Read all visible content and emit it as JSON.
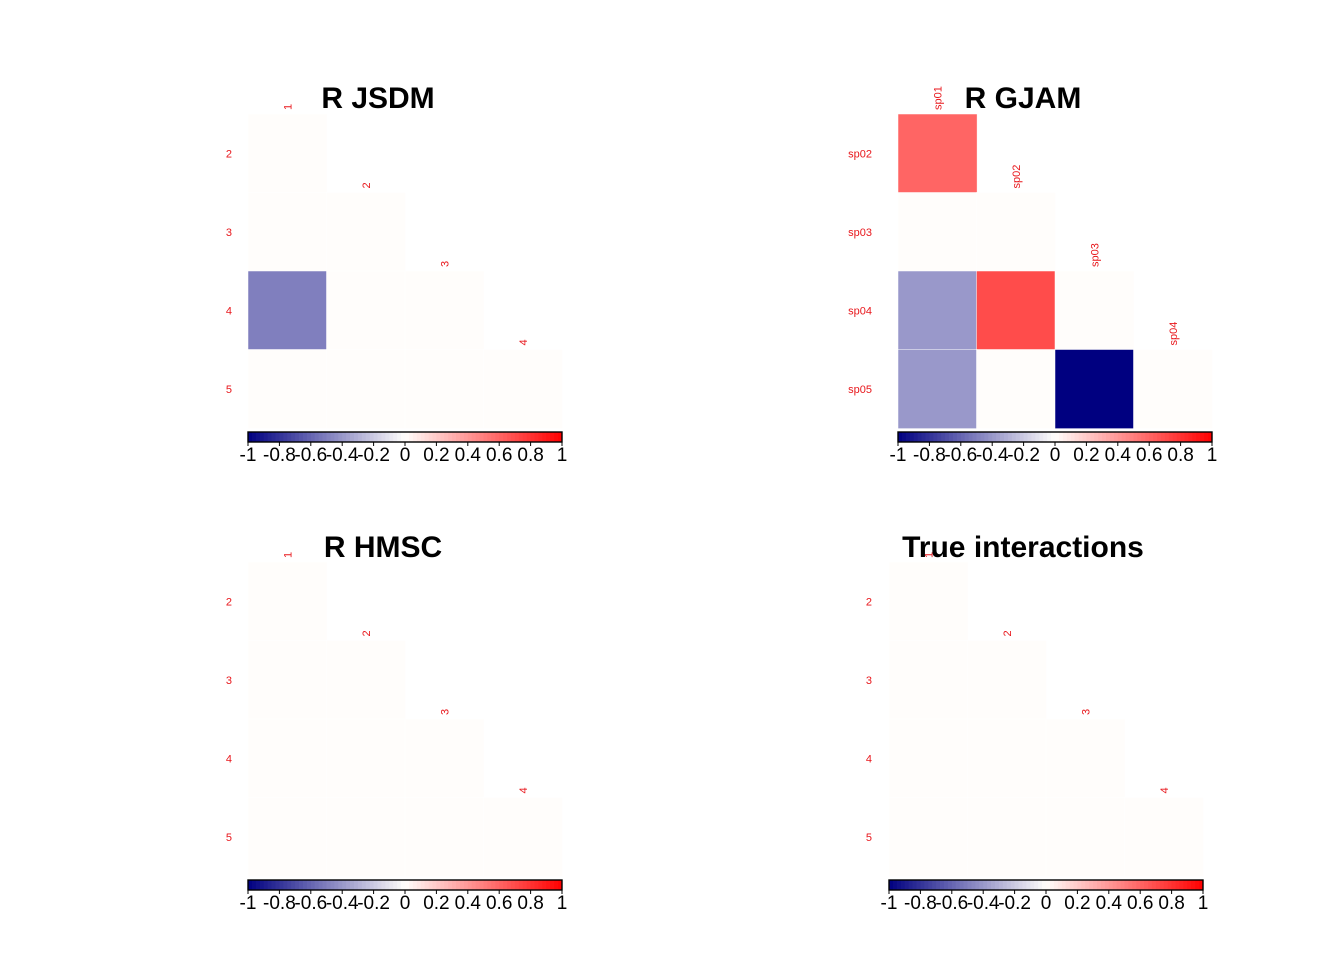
{
  "chart_data": [
    {
      "type": "heatmap",
      "title": "R  JSDM",
      "row_labels": [
        "2",
        "3",
        "4",
        "5"
      ],
      "col_labels": [
        "1",
        "2",
        "3",
        "4"
      ],
      "values": [
        [
          0,
          null,
          null,
          null
        ],
        [
          0,
          0,
          null,
          null
        ],
        [
          -0.5,
          0,
          0,
          null
        ],
        [
          0,
          0,
          0,
          0
        ]
      ],
      "colorbar": {
        "ticks": [
          "-1",
          "-0.8",
          "-0.6",
          "-0.4",
          "-0.2",
          "0",
          "0.2",
          "0.4",
          "0.6",
          "0.8",
          "1"
        ],
        "range": [
          -1,
          1
        ]
      }
    },
    {
      "type": "heatmap",
      "title": "R GJAM",
      "row_labels": [
        "sp02",
        "sp03",
        "sp04",
        "sp05"
      ],
      "col_labels": [
        "sp01",
        "sp02",
        "sp03",
        "sp04"
      ],
      "values": [
        [
          0.6,
          null,
          null,
          null
        ],
        [
          0,
          0,
          null,
          null
        ],
        [
          -0.4,
          0.7,
          0,
          null
        ],
        [
          -0.4,
          0,
          -1,
          0
        ]
      ],
      "colorbar": {
        "ticks": [
          "-1",
          "-0.8",
          "-0.6",
          "-0.4",
          "-0.2",
          "0",
          "0.2",
          "0.4",
          "0.6",
          "0.8",
          "1"
        ],
        "range": [
          -1,
          1
        ]
      }
    },
    {
      "type": "heatmap",
      "title": "R HMSC",
      "row_labels": [
        "2",
        "3",
        "4",
        "5"
      ],
      "col_labels": [
        "1",
        "2",
        "3",
        "4"
      ],
      "values": [
        [
          0,
          null,
          null,
          null
        ],
        [
          0,
          0,
          null,
          null
        ],
        [
          0,
          0,
          0,
          null
        ],
        [
          0,
          0,
          0,
          0
        ]
      ],
      "colorbar": {
        "ticks": [
          "-1",
          "-0.8",
          "-0.6",
          "-0.4",
          "-0.2",
          "0",
          "0.2",
          "0.4",
          "0.6",
          "0.8",
          "1"
        ],
        "range": [
          -1,
          1
        ]
      }
    },
    {
      "type": "heatmap",
      "title": "True interactions",
      "row_labels": [
        "2",
        "3",
        "4",
        "5"
      ],
      "col_labels": [
        "1",
        "2",
        "3",
        "4"
      ],
      "values": [
        [
          0,
          null,
          null,
          null
        ],
        [
          0,
          0,
          null,
          null
        ],
        [
          0,
          0,
          0,
          null
        ],
        [
          0,
          0,
          0,
          0
        ]
      ],
      "colorbar": {
        "ticks": [
          "-1",
          "-0.8",
          "-0.6",
          "-0.4",
          "-0.2",
          "0",
          "0.2",
          "0.4",
          "0.6",
          "0.8",
          "1"
        ],
        "range": [
          -1,
          1
        ]
      }
    }
  ]
}
